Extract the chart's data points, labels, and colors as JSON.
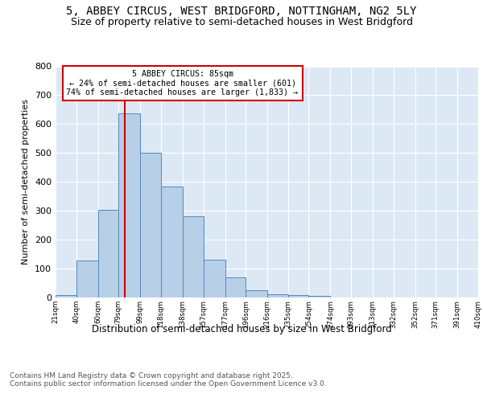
{
  "title1": "5, ABBEY CIRCUS, WEST BRIDGFORD, NOTTINGHAM, NG2 5LY",
  "title2": "Size of property relative to semi-detached houses in West Bridgford",
  "xlabel": "Distribution of semi-detached houses by size in West Bridgford",
  "ylabel": "Number of semi-detached properties",
  "footer": "Contains HM Land Registry data © Crown copyright and database right 2025.\nContains public sector information licensed under the Open Government Licence v3.0.",
  "bar_left_edges": [
    21,
    40,
    60,
    79,
    99,
    118,
    138,
    157,
    177,
    196,
    216,
    235,
    254,
    274,
    293,
    313,
    332,
    352,
    371,
    391
  ],
  "bar_heights": [
    8,
    128,
    302,
    637,
    500,
    383,
    280,
    130,
    70,
    25,
    12,
    8,
    5,
    0,
    0,
    0,
    0,
    0,
    0,
    0
  ],
  "bar_color": "#b8cfe8",
  "bar_edge_color": "#5588bb",
  "tick_labels": [
    "21sqm",
    "40sqm",
    "60sqm",
    "79sqm",
    "99sqm",
    "118sqm",
    "138sqm",
    "157sqm",
    "177sqm",
    "196sqm",
    "216sqm",
    "235sqm",
    "254sqm",
    "274sqm",
    "293sqm",
    "313sqm",
    "332sqm",
    "352sqm",
    "371sqm",
    "391sqm",
    "410sqm"
  ],
  "vline_x": 85,
  "vline_color": "#cc0000",
  "annotation_title": "5 ABBEY CIRCUS: 85sqm",
  "annotation_line1": "← 24% of semi-detached houses are smaller (601)",
  "annotation_line2": "74% of semi-detached houses are larger (1,833) →",
  "annotation_box_color": "#cc0000",
  "ylim": [
    0,
    800
  ],
  "yticks": [
    0,
    100,
    200,
    300,
    400,
    500,
    600,
    700,
    800
  ],
  "plot_bg_color": "#dde8f5",
  "title1_fontsize": 10,
  "title2_fontsize": 9,
  "xlabel_fontsize": 8.5,
  "ylabel_fontsize": 8,
  "footer_fontsize": 6.5
}
